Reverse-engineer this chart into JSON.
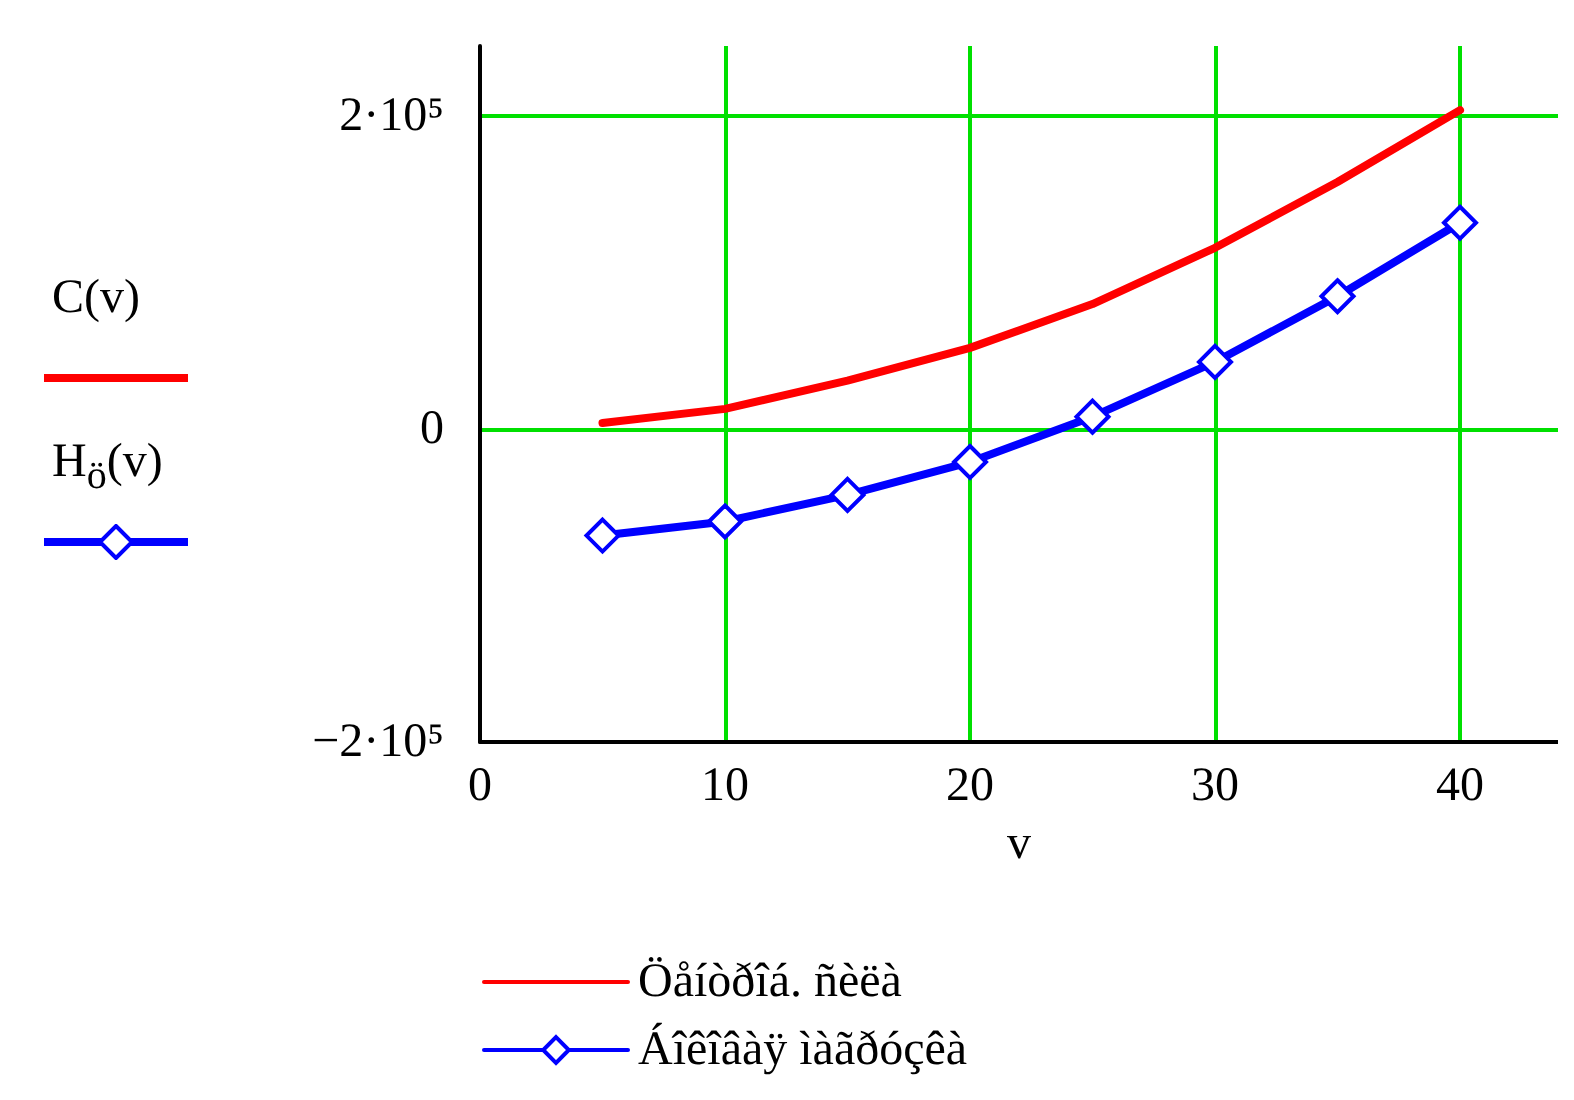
{
  "chart_data": {
    "type": "line",
    "xlabel": "v",
    "ylabel": "C(v)\nH$_{ö}$(v)",
    "x": [
      5,
      10,
      15,
      20,
      25,
      30,
      35,
      40
    ],
    "series": [
      {
        "name": "Öåíòðîá. ñèëà",
        "color": "#ff0000",
        "marker": "none",
        "values": [
          4000,
          13000,
          31000,
          52000,
          80000,
          116000,
          158000,
          204000
        ]
      },
      {
        "name": "Áîêîâàÿ ìàãðóçêà",
        "color": "#0000ff",
        "marker": "diamond",
        "values": [
          -68000,
          -59000,
          -42000,
          -21000,
          8000,
          43000,
          85000,
          132000
        ]
      }
    ],
    "xlim": [
      0,
      44
    ],
    "xticks": [
      0,
      10,
      20,
      30,
      40
    ],
    "ylim": [
      -200000,
      245000
    ],
    "yticks": [
      {
        "value": -200000,
        "label": "−2·10⁵"
      },
      {
        "value": 0,
        "label": "0"
      },
      {
        "value": 200000,
        "label": "2·10⁵"
      }
    ],
    "grid": true,
    "legend": "bottom",
    "line_style": "solid"
  }
}
